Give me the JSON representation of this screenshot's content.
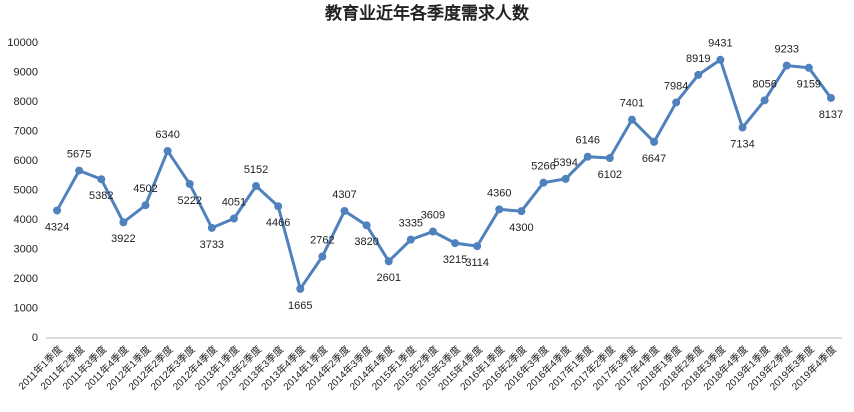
{
  "chart_data": {
    "type": "line",
    "title": "教育业近年各季度需求人数",
    "categories": [
      "2011年1季度",
      "2011年2季度",
      "2011年3季度",
      "2011年4季度",
      "2012年1季度",
      "2012年2季度",
      "2012年3季度",
      "2012年4季度",
      "2013年1季度",
      "2013年2季度",
      "2013年3季度",
      "2013年4季度",
      "2014年1季度",
      "2014年2季度",
      "2014年3季度",
      "2014年4季度",
      "2015年1季度",
      "2015年2季度",
      "2015年3季度",
      "2015年4季度",
      "2016年1季度",
      "2016年2季度",
      "2016年3季度",
      "2016年4季度",
      "2017年1季度",
      "2017年2季度",
      "2017年3季度",
      "2017年4季度",
      "2018年1季度",
      "2018年2季度",
      "2018年3季度",
      "2018年4季度",
      "2019年1季度",
      "2019年2季度",
      "2019年3季度",
      "2019年4季度"
    ],
    "values": [
      4324,
      5675,
      5382,
      3922,
      4502,
      6340,
      5222,
      3733,
      4051,
      5152,
      4466,
      1665,
      2762,
      4307,
      3820,
      2601,
      3335,
      3609,
      3215,
      3114,
      4360,
      4300,
      5266,
      5394,
      6146,
      6102,
      7401,
      6647,
      7984,
      8919,
      9431,
      7134,
      8056,
      9233,
      9159,
      8137
    ],
    "color": "#4f81bd",
    "ylim": [
      0,
      10000
    ],
    "yticks": [
      0,
      1000,
      2000,
      3000,
      4000,
      5000,
      6000,
      7000,
      8000,
      9000,
      10000
    ],
    "grid": false
  }
}
